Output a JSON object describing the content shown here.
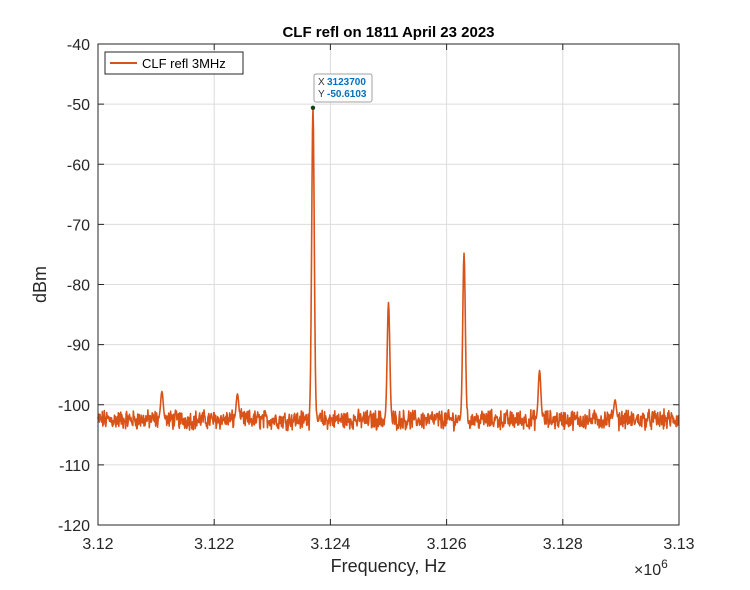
{
  "chart_data": {
    "type": "line",
    "title": "CLF refl on 1811 April 23 2023",
    "xlabel": "Frequency, Hz",
    "ylabel": "dBm",
    "xlim": [
      3120000,
      3130000
    ],
    "ylim": [
      -120,
      -40
    ],
    "xticks": [
      3120000,
      3122000,
      3124000,
      3126000,
      3128000,
      3130000
    ],
    "xtick_labels": [
      "3.12",
      "3.122",
      "3.124",
      "3.126",
      "3.128",
      "3.13"
    ],
    "x_exponent_label": "×10",
    "x_exponent_power": "6",
    "yticks": [
      -40,
      -50,
      -60,
      -70,
      -80,
      -90,
      -100,
      -110,
      -120
    ],
    "ytick_labels": [
      "-40",
      "-50",
      "-60",
      "-70",
      "-80",
      "-90",
      "-100",
      "-110",
      "-120"
    ],
    "grid": true,
    "legend_position": "top-left",
    "series": [
      {
        "name": "CLF refl 3MHz",
        "color": "#d95319",
        "noise_floor": -102.5,
        "peaks": [
          {
            "x": 3121100,
            "y": -97.8
          },
          {
            "x": 3122400,
            "y": -98.2
          },
          {
            "x": 3123700,
            "y": -50.6103
          },
          {
            "x": 3125000,
            "y": -83.0
          },
          {
            "x": 3126300,
            "y": -74.8
          },
          {
            "x": 3127600,
            "y": -94.3
          },
          {
            "x": 3128900,
            "y": -99.2
          }
        ]
      }
    ],
    "datatip": {
      "x_label": "X",
      "y_label": "Y",
      "x_value": "3123700",
      "y_value": "-50.6103"
    }
  }
}
